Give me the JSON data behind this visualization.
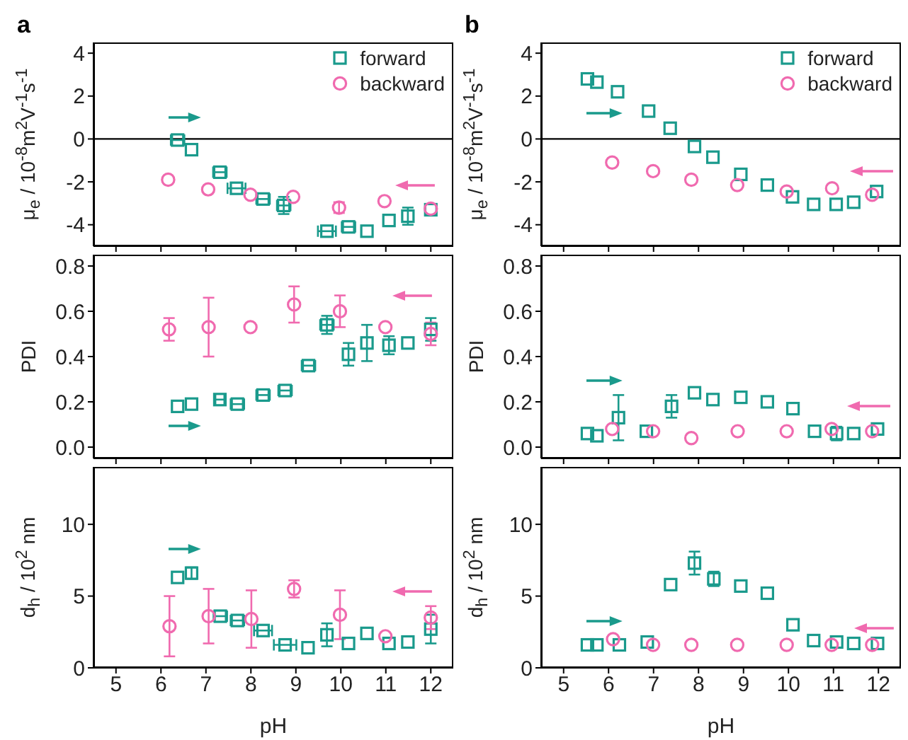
{
  "chart_data": [
    {
      "type": "scatter",
      "title": "a",
      "ylabel": "μ$_{e}$ / 10$^{-8}$m$^{2}$V$^{-1}$s$^{-1}$",
      "xlim": [
        4.5,
        12.5
      ],
      "xticks": [
        5,
        6,
        7,
        8,
        9,
        10,
        11,
        12
      ],
      "ylim": [
        -5,
        4.5
      ],
      "yticks": [
        -4,
        -2,
        0,
        2,
        4
      ],
      "tick_labels": "y",
      "legend": "top right",
      "ref_lines": [
        {
          "axis": "y",
          "value": 0,
          "color": "#000000"
        }
      ],
      "series": [
        {
          "name": "forward",
          "color": "#1a9a8c",
          "marker": "square",
          "x": [
            6.37,
            6.68,
            7.31,
            7.68,
            8.27,
            8.73,
            9.69,
            10.17,
            10.58,
            11.07,
            11.49,
            12.0
          ],
          "values": [
            -0.05,
            -0.5,
            -1.55,
            -2.3,
            -2.8,
            -3.1,
            -4.3,
            -4.1,
            -4.3,
            -3.8,
            -3.6,
            -3.3
          ],
          "errors": [
            null,
            null,
            null,
            null,
            null,
            0.4,
            null,
            null,
            null,
            null,
            0.4,
            null
          ],
          "xerrors": [
            0.15,
            null,
            0.15,
            0.2,
            0.15,
            0.15,
            0.2,
            0.15,
            null,
            null,
            null,
            null
          ]
        },
        {
          "name": "backward",
          "color": "#f06aaf",
          "marker": "circle",
          "x": [
            6.16,
            7.05,
            7.99,
            8.94,
            9.96,
            10.97,
            12.0
          ],
          "values": [
            -1.9,
            -2.35,
            -2.6,
            -2.7,
            -3.2,
            -2.9,
            -3.25
          ],
          "errors": [
            null,
            null,
            null,
            null,
            0.25,
            null,
            null
          ]
        }
      ]
    },
    {
      "type": "scatter",
      "title": "b",
      "ylabel": "μ$_{e}$ / 10$^{-8}$m$^{2}$V$^{-1}$s$^{-1}$",
      "xlim": [
        4.5,
        12.5
      ],
      "xticks": [
        5,
        6,
        7,
        8,
        9,
        10,
        11,
        12
      ],
      "ylim": [
        -5,
        4.5
      ],
      "yticks": [
        -4,
        -2,
        0,
        2,
        4
      ],
      "tick_labels": "y",
      "legend": "top right",
      "ref_lines": [
        {
          "axis": "y",
          "value": 0,
          "color": "#000000"
        }
      ],
      "series": [
        {
          "name": "forward",
          "color": "#1a9a8c",
          "marker": "square",
          "x": [
            5.53,
            5.74,
            6.2,
            6.89,
            7.37,
            7.91,
            8.32,
            8.94,
            9.53,
            10.09,
            10.56,
            11.06,
            11.45,
            11.96
          ],
          "values": [
            2.8,
            2.65,
            2.2,
            1.3,
            0.5,
            -0.35,
            -0.85,
            -1.65,
            -2.15,
            -2.7,
            -3.05,
            -3.05,
            -2.95,
            -2.45
          ]
        },
        {
          "name": "backward",
          "color": "#f06aaf",
          "marker": "circle",
          "x": [
            6.08,
            6.99,
            7.84,
            8.86,
            9.96,
            10.97,
            11.86
          ],
          "values": [
            -1.1,
            -1.5,
            -1.9,
            -2.15,
            -2.45,
            -2.3,
            -2.6
          ]
        }
      ]
    },
    {
      "type": "scatter",
      "ylabel": "PDI",
      "xlim": [
        4.5,
        12.5
      ],
      "xticks": [
        5,
        6,
        7,
        8,
        9,
        10,
        11,
        12
      ],
      "ylim": [
        -0.05,
        0.85
      ],
      "yticks": [
        {
          "value": 0,
          "label": "0.0"
        },
        {
          "value": 0.2,
          "label": "0.2"
        },
        {
          "value": 0.4,
          "label": "0.4"
        },
        {
          "value": 0.6,
          "label": "0.6"
        },
        {
          "value": 0.8,
          "label": "0.8"
        }
      ],
      "tick_labels": "y",
      "series": [
        {
          "color": "#1a9a8c",
          "marker": "square",
          "x": [
            6.37,
            6.68,
            7.31,
            7.7,
            8.27,
            8.76,
            9.28,
            9.69,
            10.17,
            10.58,
            11.07,
            11.49,
            12.0
          ],
          "values": [
            0.18,
            0.19,
            0.21,
            0.19,
            0.23,
            0.25,
            0.36,
            0.54,
            0.41,
            0.46,
            0.45,
            0.46,
            0.52
          ],
          "errors": [
            null,
            null,
            null,
            null,
            null,
            null,
            null,
            0.04,
            0.05,
            0.08,
            0.04,
            null,
            0.05
          ],
          "xerrors": [
            null,
            null,
            0.1,
            0.15,
            0.15,
            0.15,
            0.15,
            0.15,
            null,
            null,
            null,
            null,
            null
          ]
        },
        {
          "color": "#f06aaf",
          "marker": "circle",
          "x": [
            6.18,
            7.06,
            7.99,
            8.96,
            9.98,
            10.99,
            12.0
          ],
          "values": [
            0.52,
            0.53,
            0.53,
            0.63,
            0.6,
            0.53,
            0.5
          ],
          "errors": [
            0.05,
            0.13,
            null,
            0.08,
            0.07,
            null,
            0.05
          ]
        }
      ]
    },
    {
      "type": "scatter",
      "ylabel": "PDI",
      "xlim": [
        4.5,
        12.5
      ],
      "xticks": [
        5,
        6,
        7,
        8,
        9,
        10,
        11,
        12
      ],
      "ylim": [
        -0.05,
        0.85
      ],
      "yticks": [
        {
          "value": 0,
          "label": "0.0"
        },
        {
          "value": 0.2,
          "label": "0.2"
        },
        {
          "value": 0.4,
          "label": "0.4"
        },
        {
          "value": 0.6,
          "label": "0.6"
        },
        {
          "value": 0.8,
          "label": "0.8"
        }
      ],
      "tick_labels": "y",
      "series": [
        {
          "color": "#1a9a8c",
          "marker": "square",
          "x": [
            5.53,
            5.74,
            6.22,
            6.84,
            7.4,
            7.91,
            8.32,
            8.94,
            9.53,
            10.1,
            10.58,
            11.07,
            11.45,
            11.98
          ],
          "values": [
            0.06,
            0.05,
            0.13,
            0.07,
            0.18,
            0.24,
            0.21,
            0.22,
            0.2,
            0.17,
            0.07,
            0.06,
            0.06,
            0.08
          ],
          "errors": [
            null,
            null,
            0.1,
            null,
            0.05,
            null,
            null,
            null,
            null,
            null,
            null,
            0.03,
            null,
            null
          ]
        },
        {
          "color": "#f06aaf",
          "marker": "circle",
          "x": [
            6.08,
            6.99,
            7.84,
            8.87,
            9.96,
            10.96,
            11.86
          ],
          "values": [
            0.08,
            0.07,
            0.04,
            0.07,
            0.07,
            0.08,
            0.07
          ]
        }
      ]
    },
    {
      "type": "scatter",
      "ylabel": "d$_{h}$ / 10$^{2}$ nm",
      "xlabel": "pH",
      "xlim": [
        4.5,
        12.5
      ],
      "xticks": [
        5,
        6,
        7,
        8,
        9,
        10,
        11,
        12
      ],
      "ylim": [
        0,
        14
      ],
      "yticks": [
        0,
        5,
        10
      ],
      "series": [
        {
          "color": "#1a9a8c",
          "marker": "square",
          "x": [
            6.37,
            6.68,
            7.32,
            7.7,
            8.27,
            8.76,
            9.27,
            9.69,
            10.17,
            10.58,
            11.07,
            11.49,
            12.0
          ],
          "values": [
            6.3,
            6.6,
            3.6,
            3.3,
            2.6,
            1.6,
            1.4,
            2.3,
            1.7,
            2.4,
            1.7,
            1.8,
            2.7
          ],
          "errors": [
            null,
            0.4,
            null,
            null,
            null,
            null,
            null,
            0.8,
            null,
            null,
            null,
            null,
            1.0
          ],
          "xerrors": [
            null,
            null,
            0.15,
            0.15,
            0.2,
            0.25,
            null,
            null,
            null,
            null,
            null,
            null,
            null
          ]
        },
        {
          "color": "#f06aaf",
          "marker": "circle",
          "x": [
            6.19,
            7.06,
            8.01,
            8.96,
            9.98,
            10.99,
            12.0
          ],
          "values": [
            2.9,
            3.6,
            3.4,
            5.5,
            3.7,
            2.2,
            3.5
          ],
          "errors": [
            2.1,
            1.9,
            2.0,
            0.6,
            1.7,
            null,
            0.8
          ]
        }
      ]
    },
    {
      "type": "scatter",
      "ylabel": "d$_{h}$ / 10$^{2}$ nm",
      "xlabel": "pH",
      "xlim": [
        4.5,
        12.5
      ],
      "xticks": [
        5,
        6,
        7,
        8,
        9,
        10,
        11,
        12
      ],
      "ylim": [
        0,
        14
      ],
      "yticks": [
        0,
        5,
        10
      ],
      "series": [
        {
          "color": "#1a9a8c",
          "marker": "square",
          "x": [
            5.53,
            5.74,
            6.24,
            6.86,
            7.38,
            7.91,
            8.34,
            8.94,
            9.53,
            10.1,
            10.56,
            11.07,
            11.45,
            11.98
          ],
          "values": [
            1.6,
            1.6,
            1.6,
            1.8,
            5.8,
            7.3,
            6.2,
            5.7,
            5.2,
            3.0,
            1.9,
            1.8,
            1.7,
            1.7
          ],
          "errors": [
            null,
            null,
            null,
            null,
            null,
            0.8,
            0.5,
            null,
            null,
            null,
            null,
            null,
            null,
            null
          ]
        },
        {
          "color": "#f06aaf",
          "marker": "circle",
          "x": [
            6.1,
            6.99,
            7.84,
            8.86,
            9.96,
            10.96,
            11.86
          ],
          "values": [
            2.0,
            1.6,
            1.6,
            1.6,
            1.6,
            1.6,
            1.6
          ]
        }
      ]
    }
  ]
}
